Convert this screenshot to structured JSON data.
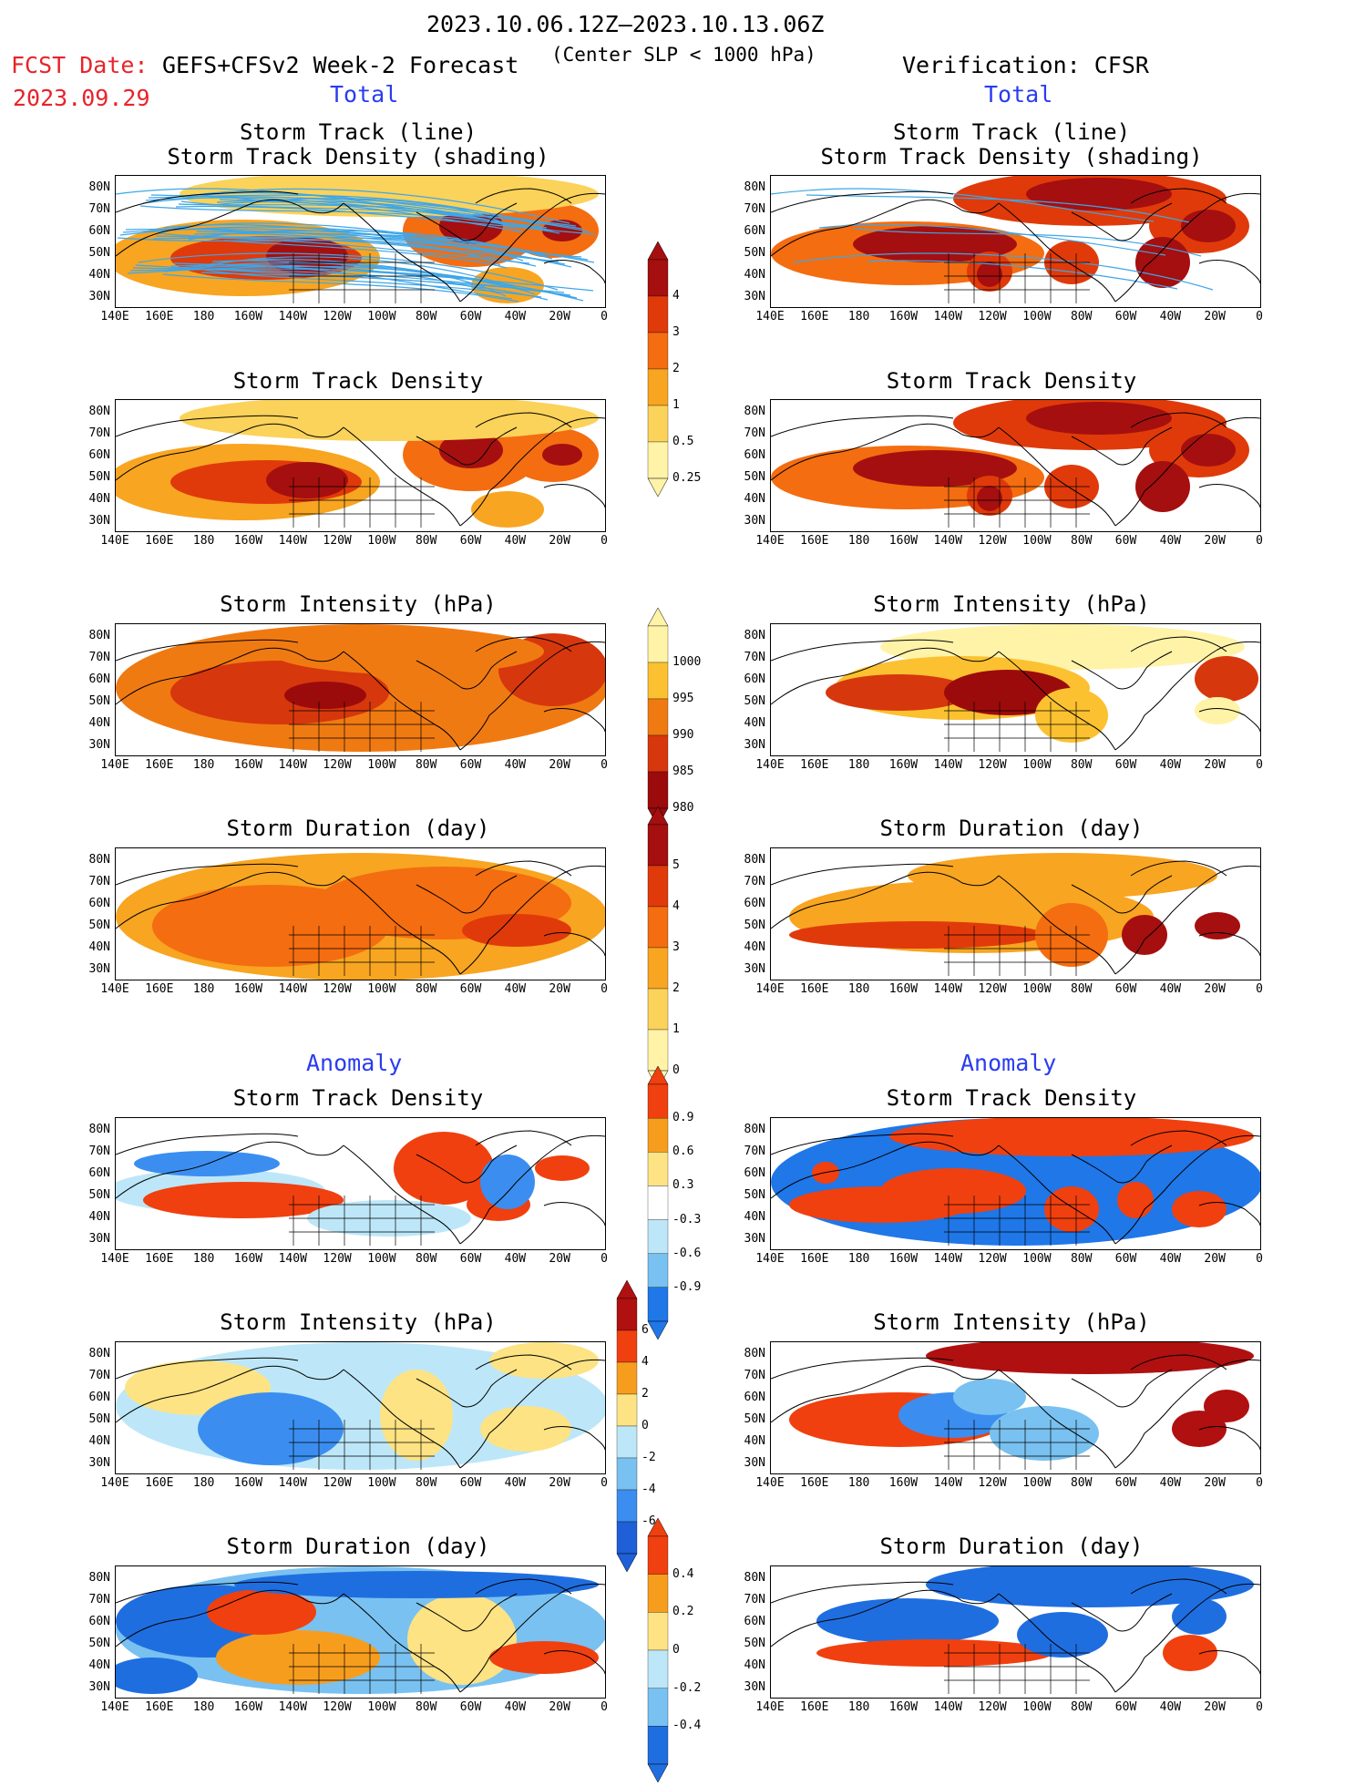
{
  "header": {
    "period": "2023.10.06.12Z—2023.10.13.06Z",
    "fcst_label": "FCST Date:",
    "fcst_date": "2023.09.29",
    "model": "GEFS+CFSv2 Week-2 Forecast",
    "criterion": "(Center SLP < 1000 hPa)",
    "verification": "Verification: CFSR"
  },
  "sections": {
    "total": "Total",
    "anomaly": "Anomaly"
  },
  "panel_titles": {
    "track_line": "Storm Track (line)",
    "track_shading": "Storm Track Density (shading)",
    "density": "Storm Track Density",
    "intensity": "Storm Intensity (hPa)",
    "duration": "Storm Duration (day)"
  },
  "axes": {
    "lat": [
      "80N",
      "70N",
      "60N",
      "50N",
      "40N",
      "30N"
    ],
    "lon": [
      "140E",
      "160E",
      "180",
      "160W",
      "140W",
      "120W",
      "100W",
      "80W",
      "60W",
      "40W",
      "20W",
      "0"
    ]
  },
  "colorbars": {
    "density_total": {
      "labels": [
        "4",
        "3",
        "2",
        "1",
        "0.5",
        "0.25"
      ],
      "colors": [
        "#a50f0f",
        "#e03a0a",
        "#f46d10",
        "#f8a521",
        "#fbd25a",
        "#fff3a8"
      ]
    },
    "intensity_total": {
      "labels": [
        "1000",
        "995",
        "990",
        "985",
        "980"
      ],
      "colors": [
        "#fff3a8",
        "#fbc130",
        "#f07a12",
        "#d7370d",
        "#9c0b0b"
      ]
    },
    "duration_total": {
      "labels": [
        "5",
        "4",
        "3",
        "2",
        "1",
        "0"
      ],
      "colors": [
        "#a50f0f",
        "#e03a0a",
        "#f46d10",
        "#f8a521",
        "#fbd25a",
        "#fff3a8"
      ]
    },
    "density_anom": {
      "labels": [
        "0.9",
        "0.6",
        "0.3",
        "-0.3",
        "-0.6",
        "-0.9"
      ],
      "colors": [
        "#f0400f",
        "#f79d1e",
        "#fde383",
        "#ffffff",
        "#bde7f8",
        "#79c1f0",
        "#1f77e8"
      ]
    },
    "intensity_anom": {
      "labels": [
        "6",
        "4",
        "2",
        "0",
        "-2",
        "-4",
        "-6"
      ],
      "colors": [
        "#b01010",
        "#f0400f",
        "#f79d1e",
        "#fde383",
        "#bde7f8",
        "#79c1f0",
        "#3b8ef0",
        "#1f5fd8"
      ]
    },
    "duration_anom": {
      "labels": [
        "0.4",
        "0.2",
        "0",
        "-0.2",
        "-0.4"
      ],
      "colors": [
        "#f0400f",
        "#f79d1e",
        "#fde383",
        "#bde7f8",
        "#79c1f0",
        "#1f6ee0"
      ]
    }
  }
}
